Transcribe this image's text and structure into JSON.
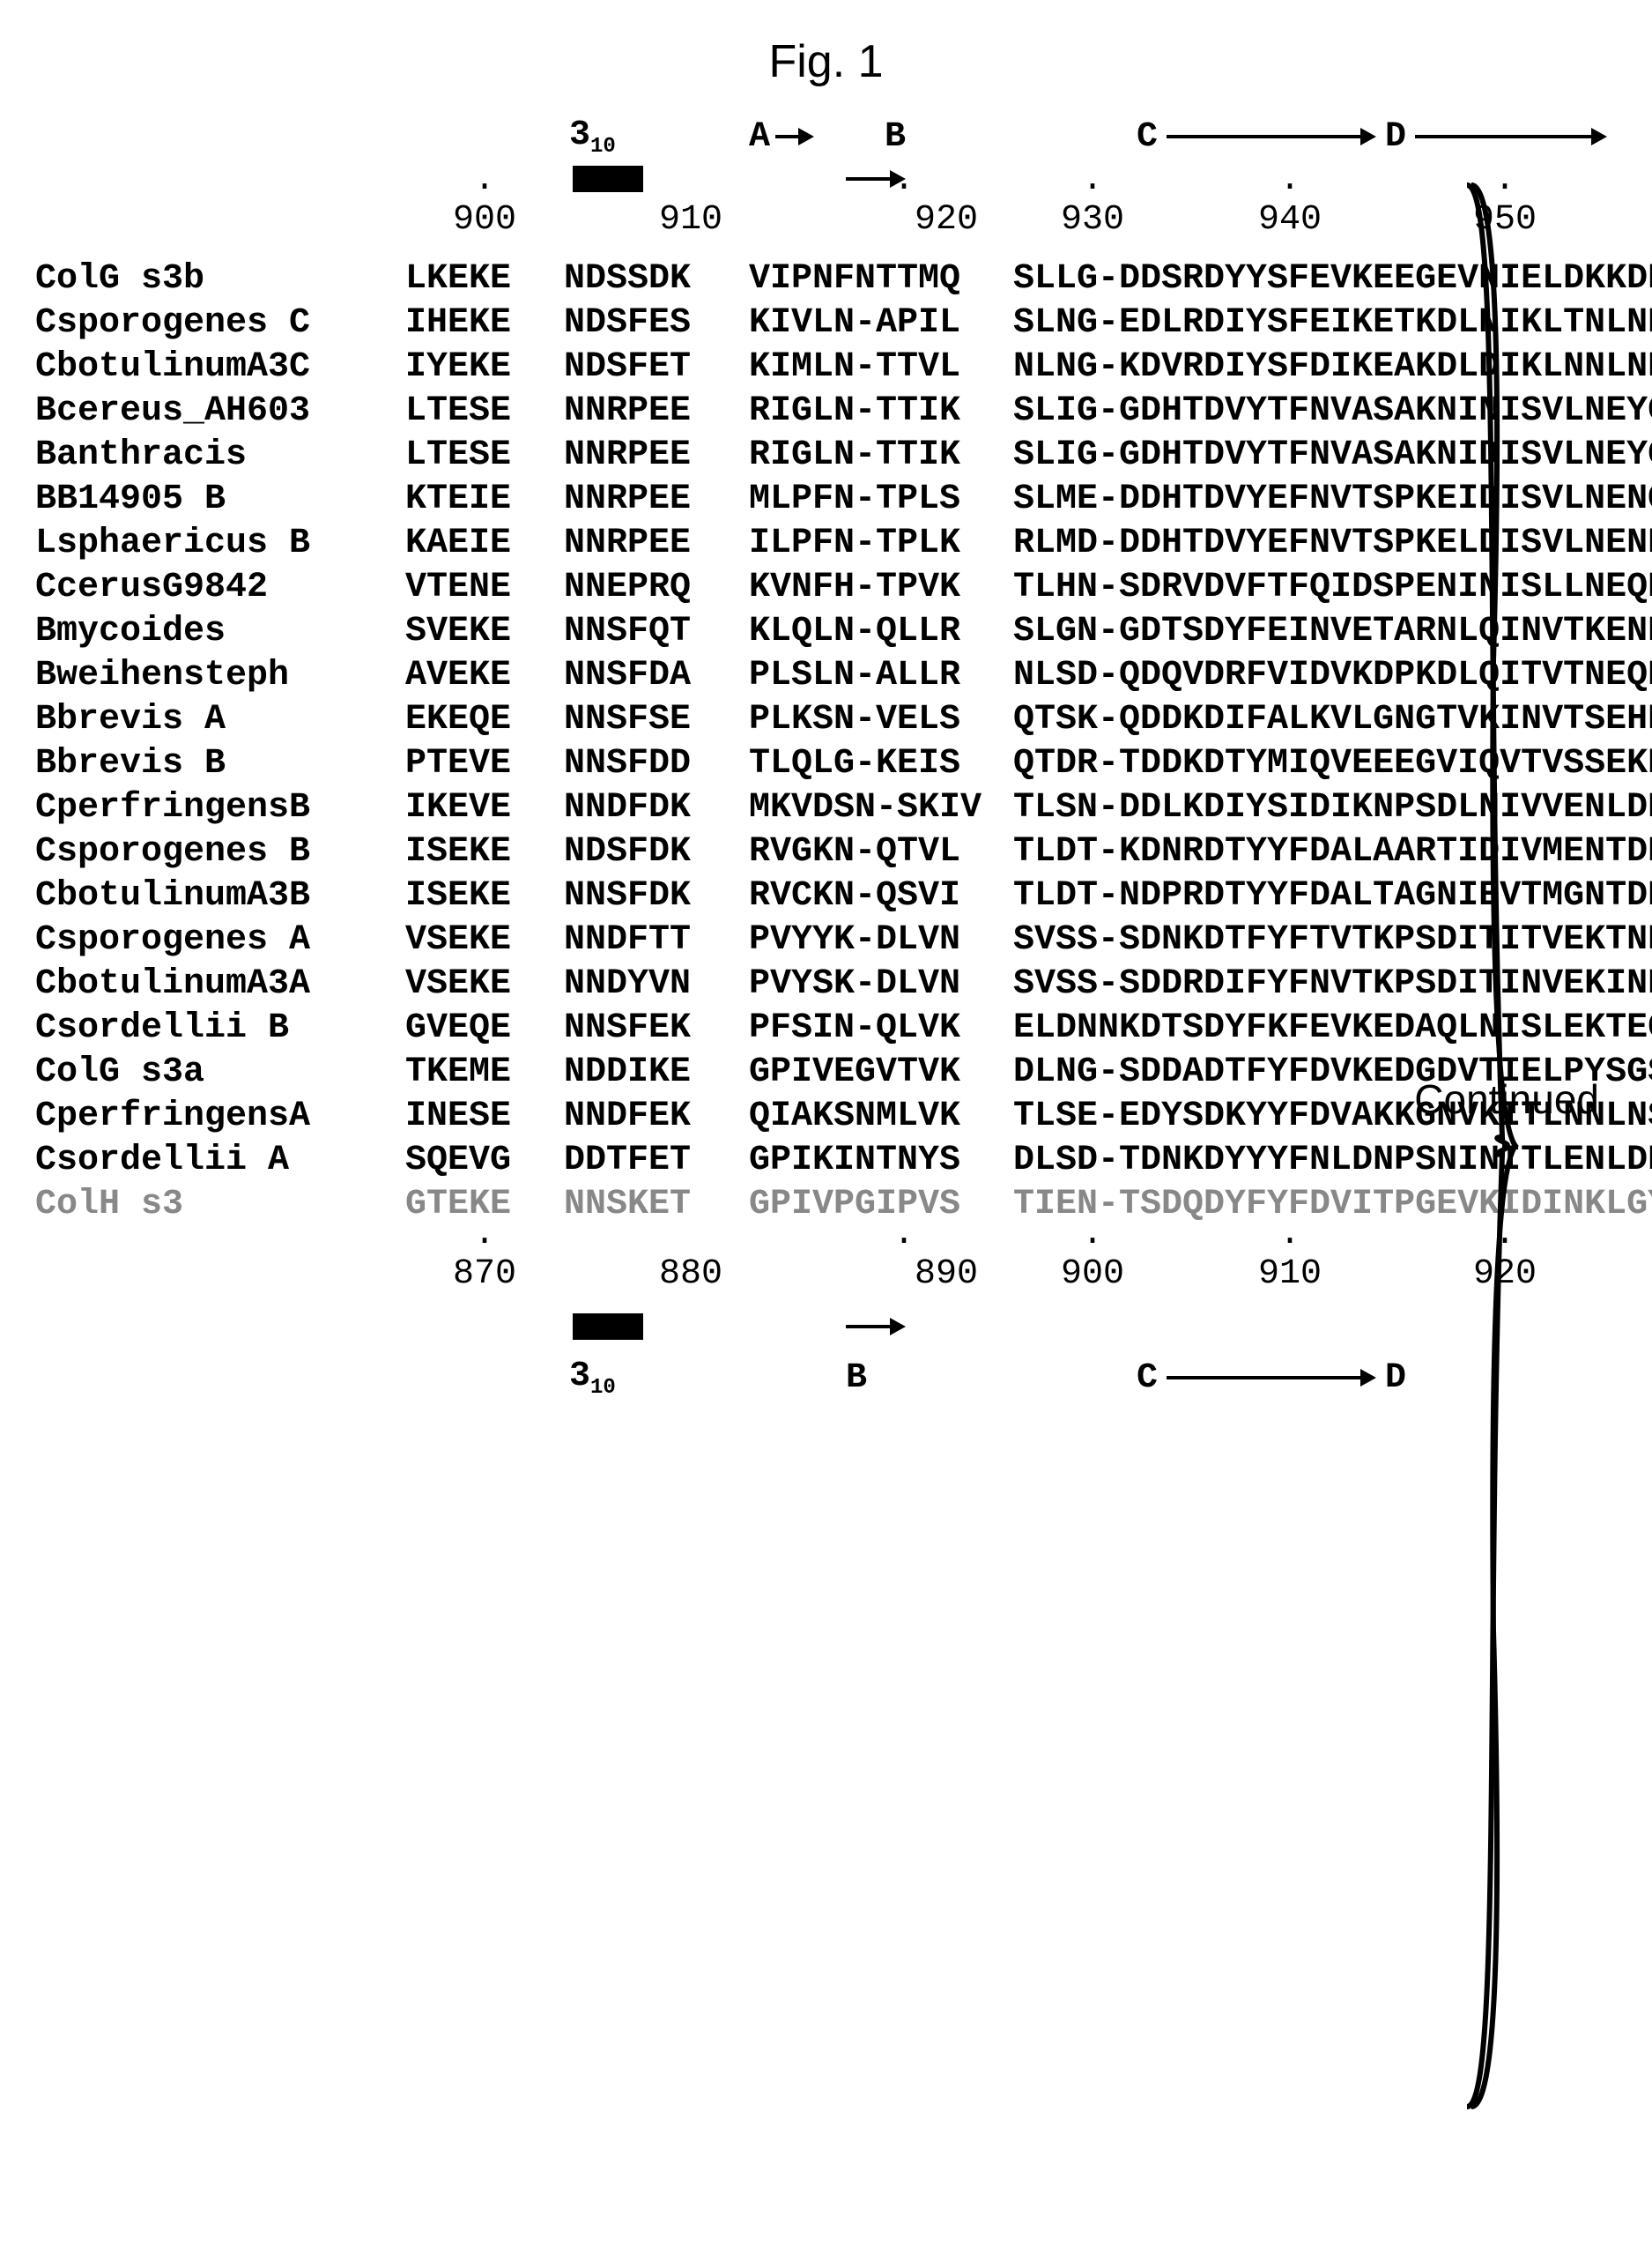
{
  "figure_label": "Fig. 1",
  "continued_label": "Continued",
  "helix": {
    "label_html": "3",
    "sub": "10"
  },
  "regions_top": {
    "A": "A",
    "B": "B",
    "C": "C",
    "D": "D"
  },
  "ruler_top": {
    "p900": "900",
    "p910": "910",
    "p920": "920",
    "p930": "930",
    "p940": "940",
    "p950": "950"
  },
  "ruler_bottom": {
    "p870": "870",
    "p880": "880",
    "p890": "890",
    "p900": "900",
    "p910": "910",
    "p920": "920"
  },
  "rows": [
    {
      "name": "ColG s3b",
      "c0": "LKEKE",
      "c1": "NDSSDK",
      "c2": "VIPNFNTTMQ",
      "c3": "SLLG-DDSRDYYSFEVKEEGEVNIELDKKDE",
      "dim": false
    },
    {
      "name": "Csporogenes C",
      "c0": "IHEKE",
      "c1": "NDSFES",
      "c2": "KIVLN-APIL",
      "c3": "SLNG-EDLRDIYSFEIKETKDLNIKLTNLNN",
      "dim": false
    },
    {
      "name": "CbotulinumA3C",
      "c0": "IYEKE",
      "c1": "NDSFET",
      "c2": "KIMLN-TTVL",
      "c3": "NLNG-KDVRDIYSFDIKEAKDLDIKLNNLNN",
      "dim": false
    },
    {
      "name": "Bcereus_AH603",
      "c0": "LTESE",
      "c1": "NNRPEE",
      "c2": "RIGLN-TTIK",
      "c3": "SLIG-GDHTDVYTFNVASAKNINISVLNEYG",
      "dim": false
    },
    {
      "name": "Banthracis",
      "c0": "LTESE",
      "c1": "NNRPEE",
      "c2": "RIGLN-TTIK",
      "c3": "SLIG-GDHTDVYTFNVASAKNIDISVLNEYG",
      "dim": false
    },
    {
      "name": "BB14905 B",
      "c0": "KTEIE",
      "c1": "NNRPEE",
      "c2": "MLPFN-TPLS",
      "c3": "SLME-DDHTDVYEFNVTSPKEIDISVLNENQ",
      "dim": false
    },
    {
      "name": "Lsphaericus B",
      "c0": "KAEIE",
      "c1": "NNRPEE",
      "c2": "ILPFN-TPLK",
      "c3": "RLMD-DDHTDVYEFNVTSPKELDISVLNENR",
      "dim": false
    },
    {
      "name": "CcerusG9842",
      "c0": "VTENE",
      "c1": "NNEPRQ",
      "c2": "KVNFH-TPVK",
      "c3": "TLHN-SDRVDVFTFQIDSPENINISLLNEQN",
      "dim": false
    },
    {
      "name": "Bmycoides",
      "c0": "SVEKE",
      "c1": "NNSFQT",
      "c2": "KLQLN-QLLR",
      "c3": "SLGN-GDTSDYFEINVETARNLQINVTKENN",
      "dim": false
    },
    {
      "name": "Bweihensteph",
      "c0": "AVEKE",
      "c1": "NNSFDA",
      "c2": "PLSLN-ALLR",
      "c3": "NLSD-QDQVDRFVIDVKDPKDLQITVTNEQN",
      "dim": false
    },
    {
      "name": "Bbrevis A",
      "c0": "EKEQE",
      "c1": "NNSFSE",
      "c2": "PLKSN-VELS",
      "c3": "QTSK-QDDKDIFALKVLGNGTVKINVTSEHD",
      "dim": false
    },
    {
      "name": "Bbrevis B",
      "c0": "PTEVE",
      "c1": "NNSFDD",
      "c2": "TLQLG-KEIS",
      "c3": "QTDR-TDDKDTYMIQVEEEGVIQVTVSSEKD",
      "dim": false
    },
    {
      "name": "CperfringensB",
      "c0": "IKEVE",
      "c1": "NNDFDK",
      "c2": "MKVDSN-SKIV",
      "c3": "TLSN-DDLKDIYSIDIKNPSDLNIVVENLDN",
      "dim": false
    },
    {
      "name": "Csporogenes B",
      "c0": "ISEKE",
      "c1": "NDSFDK",
      "c2": "RVGKN-QTVL",
      "c3": "TLDT-KDNRDTYYFDALAARTIDIVMENTDN",
      "dim": false
    },
    {
      "name": "CbotulinumA3B",
      "c0": "ISEKE",
      "c1": "NNSFDK",
      "c2": "RVCKN-QSVI",
      "c3": "TLDT-NDPRDTYYFDALTAGNIEVTMGNTDN",
      "dim": false
    },
    {
      "name": "Csporogenes A",
      "c0": "VSEKE",
      "c1": "NNDFTT",
      "c2": "PVYYK-DLVN",
      "c3": "SVSS-SDNKDTFYFTVTKPSDITITVEKTNN",
      "dim": false
    },
    {
      "name": "CbotulinumA3A",
      "c0": "VSEKE",
      "c1": "NNDYVN",
      "c2": "PVYSK-DLVN",
      "c3": "SVSS-SDDRDIFYFNVTKPSDITINVEKINK",
      "dim": false
    },
    {
      "name": "Csordellii B",
      "c0": "GVEQE",
      "c1": "NNSFEK",
      "c2": "PFSIN-QLVK",
      "c3": "ELDNNKDTSDYFKFEVKEDAQLNISLEKTEG",
      "dim": false
    },
    {
      "name": "ColG s3a",
      "c0": "TKEME",
      "c1": "NDDIKE",
      "c2": "GPIVEGVTVK",
      "c3": "DLNG-SDDADTFYFDVKEDGDVTIELPYSGS",
      "dim": false
    },
    {
      "name": "CperfringensA",
      "c0": "INESE",
      "c1": "NNDFEK",
      "c2": "QIAKSNMLVK",
      "c3": "TLSE-EDYSDKYYFDVAKKGNVKITLNNLNS",
      "dim": false
    },
    {
      "name": "Csordellii A",
      "c0": "SQEVG",
      "c1": "DDTFET",
      "c2": "GPIKINTNYS",
      "c3": "DLSD-TDNKDYYYFNLDNPSNINITLENLDN",
      "dim": false
    },
    {
      "name": "ColH s3",
      "c0": "GTEKE",
      "c1": "NNSKET",
      "c2": "GPIVPGIPVS",
      "c3": "TIEN-TSDQDYFYFDVITPGEVKIDINKLGY",
      "dim": true
    }
  ],
  "colors": {
    "fg": "#000000",
    "bg": "#ffffff",
    "dim": "#888888"
  }
}
